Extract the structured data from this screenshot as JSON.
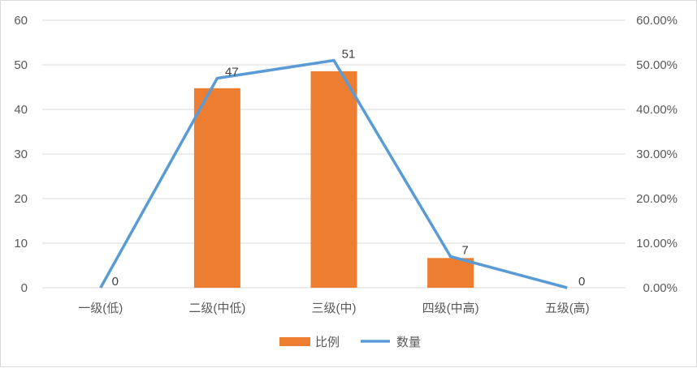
{
  "chart_data": {
    "type": "bar+line",
    "categories": [
      "一级(低)",
      "二级(中低)",
      "三级(中)",
      "四级(中高)",
      "五级(高)"
    ],
    "series": [
      {
        "name": "比例",
        "type": "bar",
        "axis": "right",
        "color": "#ED7D31",
        "values": [
          0.0,
          44.76,
          48.57,
          6.67,
          0.0
        ]
      },
      {
        "name": "数量",
        "type": "line",
        "axis": "left",
        "color": "#5B9BD5",
        "values": [
          0,
          47,
          51,
          7,
          0
        ],
        "data_labels": [
          "0",
          "47",
          "51",
          "7",
          "0"
        ]
      }
    ],
    "y_left": {
      "min": 0,
      "max": 60,
      "ticks": [
        "0",
        "10",
        "20",
        "30",
        "40",
        "50",
        "60"
      ]
    },
    "y_right": {
      "min": 0,
      "max": 60,
      "ticks": [
        "0.00%",
        "10.00%",
        "20.00%",
        "30.00%",
        "40.00%",
        "50.00%",
        "60.00%"
      ]
    },
    "grid": true,
    "legend": "bottom"
  }
}
